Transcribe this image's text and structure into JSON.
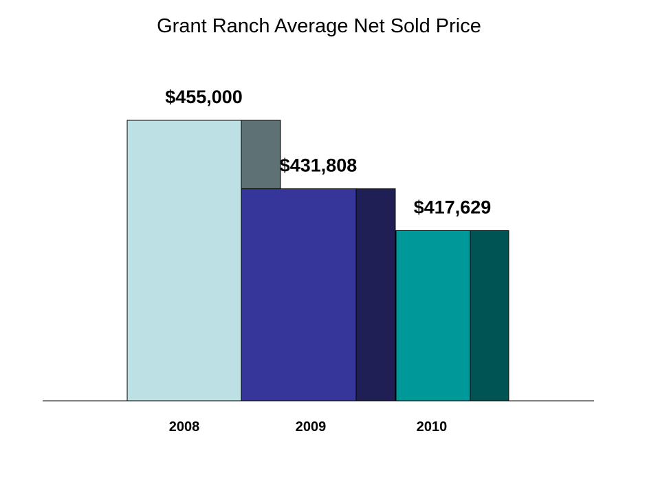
{
  "chart_data": {
    "type": "bar",
    "title": "Grant Ranch Average Net Sold Price",
    "xlabel": "",
    "ylabel": "",
    "categories": [
      "2008",
      "2009",
      "2010"
    ],
    "values": [
      455000,
      431808,
      417629
    ],
    "value_labels": [
      "$455,000",
      "$431,808",
      "$417,629"
    ],
    "ylim": [
      360000,
      460000
    ],
    "grid": false,
    "legend": "none",
    "style": "3d",
    "colors": [
      {
        "face": "#bde0e4",
        "side": "#5f7273"
      },
      {
        "face": "#35359a",
        "side": "#1f1f55"
      },
      {
        "face": "#009999",
        "side": "#005454"
      }
    ]
  }
}
